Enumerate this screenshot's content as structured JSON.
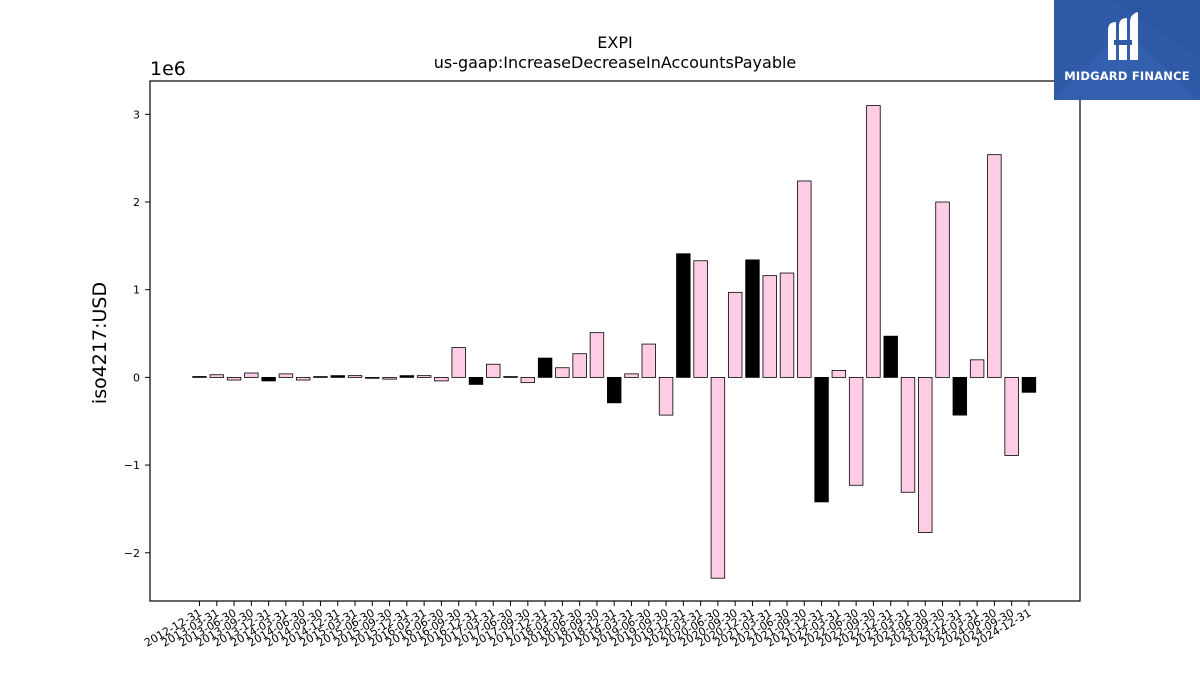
{
  "chart_data": {
    "type": "bar",
    "title": "EXPI",
    "subtitle": "us-gaap:IncreaseDecreaseInAccountsPayable",
    "ylabel": "iso4217:USD",
    "xlabel": "",
    "y_scale_label": "1e6",
    "ylim": [
      -2550000,
      3380000
    ],
    "yticks": [
      -2000000,
      -1000000,
      0,
      1000000,
      2000000,
      3000000
    ],
    "ytick_labels": [
      "−2",
      "−1",
      "0",
      "1",
      "2",
      "3"
    ],
    "categories": [
      "2012-12-31",
      "2013-03-31",
      "2013-06-30",
      "2013-09-30",
      "2013-12-31",
      "2014-03-31",
      "2014-06-30",
      "2014-09-30",
      "2014-12-31",
      "2015-03-31",
      "2015-06-30",
      "2015-09-30",
      "2015-12-31",
      "2016-03-31",
      "2016-06-30",
      "2016-09-30",
      "2016-12-31",
      "2017-03-31",
      "2017-06-30",
      "2017-09-30",
      "2017-12-31",
      "2018-03-31",
      "2018-06-30",
      "2018-09-30",
      "2018-12-31",
      "2019-03-31",
      "2019-06-30",
      "2019-09-30",
      "2019-12-31",
      "2020-03-31",
      "2020-06-30",
      "2020-09-30",
      "2020-12-31",
      "2021-03-31",
      "2021-06-30",
      "2021-09-30",
      "2021-12-31",
      "2022-03-31",
      "2022-06-30",
      "2022-09-30",
      "2022-12-31",
      "2023-03-31",
      "2023-06-30",
      "2023-09-30",
      "2023-12-31",
      "2024-03-31",
      "2024-06-30",
      "2024-09-30",
      "2024-12-31"
    ],
    "values": [
      10000,
      30000,
      -30000,
      50000,
      -40000,
      40000,
      -30000,
      10000,
      20000,
      20000,
      -10000,
      -20000,
      20000,
      20000,
      -40000,
      340000,
      -80000,
      150000,
      10000,
      -60000,
      220000,
      110000,
      270000,
      510000,
      -290000,
      40000,
      380000,
      -430000,
      1410000,
      1330000,
      -2290000,
      970000,
      1340000,
      1160000,
      1190000,
      2240000,
      -1420000,
      80000,
      -1230000,
      3100000,
      470000,
      -1310000,
      -1770000,
      2000000,
      -430000,
      200000,
      2540000,
      -890000,
      -170000
    ],
    "colors": [
      "black",
      "pink",
      "pink",
      "pink",
      "black",
      "pink",
      "pink",
      "pink",
      "black",
      "pink",
      "pink",
      "pink",
      "black",
      "pink",
      "pink",
      "pink",
      "black",
      "pink",
      "pink",
      "pink",
      "black",
      "pink",
      "pink",
      "pink",
      "black",
      "pink",
      "pink",
      "pink",
      "black",
      "pink",
      "pink",
      "pink",
      "black",
      "pink",
      "pink",
      "pink",
      "black",
      "pink",
      "pink",
      "pink",
      "black",
      "pink",
      "pink",
      "pink",
      "black",
      "pink",
      "pink",
      "pink",
      "black"
    ],
    "palette": {
      "pink": "#ffcce6",
      "black": "#000000",
      "edge": "#000000"
    },
    "grid": false,
    "legend": "none"
  },
  "logo": {
    "text": "MIDGARD FINANCE",
    "bg_color": "#2f5aa8",
    "icon": "midgard-logo-icon"
  }
}
